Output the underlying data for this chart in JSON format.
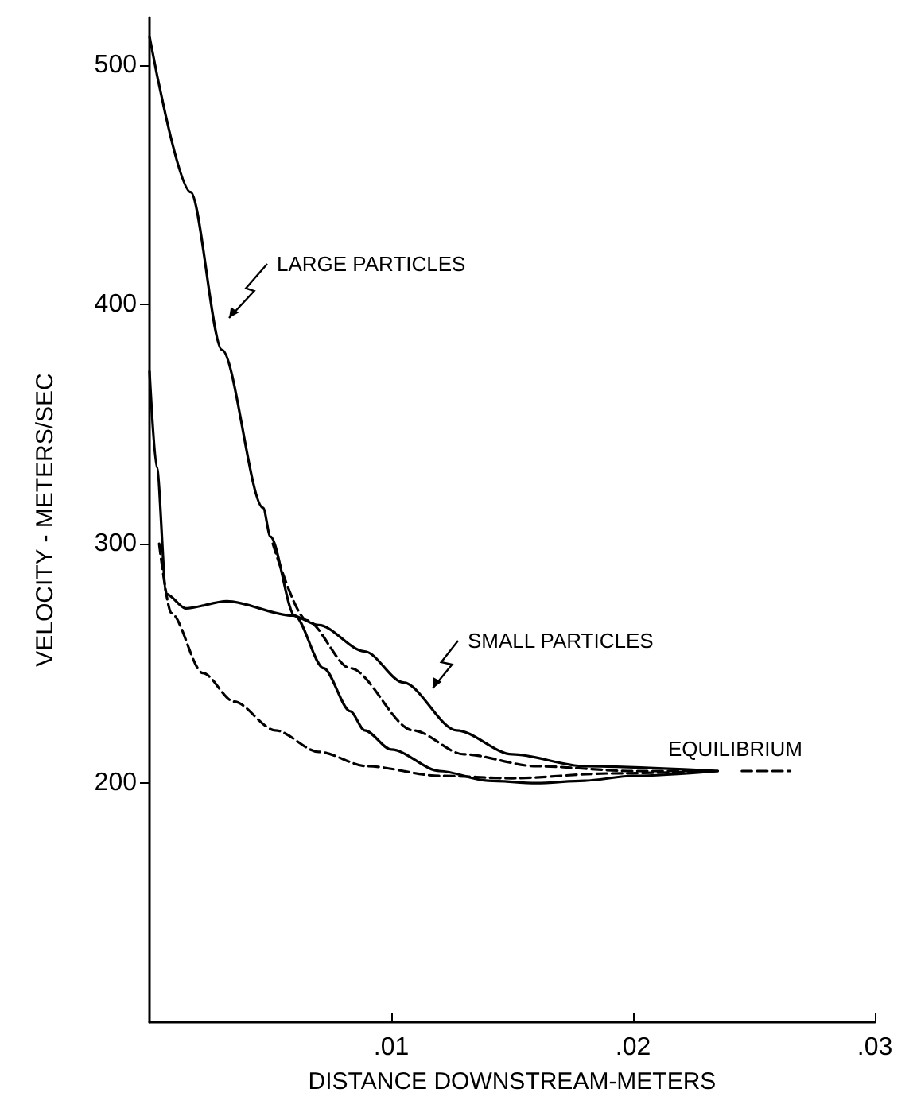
{
  "chart_data": {
    "type": "line",
    "xlabel": "DISTANCE DOWNSTREAM-METERS",
    "ylabel": "VELOCITY - METERS/SEC",
    "xlim": [
      0,
      0.03
    ],
    "ylim": [
      100,
      520
    ],
    "xticks": [
      {
        "value": 0.01,
        "label": ".01"
      },
      {
        "value": 0.02,
        "label": ".02"
      },
      {
        "value": 0.03,
        "label": ".03"
      }
    ],
    "yticks": [
      200,
      300,
      400,
      500
    ],
    "grid": false,
    "marker": "none",
    "series": [
      {
        "color": "#000000",
        "line_style": "solid",
        "x": [
          0,
          0.0017,
          0.003,
          0.0047,
          0.005,
          0.006,
          0.0072,
          0.0083,
          0.0089,
          0.01,
          0.012,
          0.014,
          0.016,
          0.018,
          0.02,
          0.0235
        ],
        "values": [
          512,
          447,
          381,
          315,
          303,
          270,
          248,
          230,
          222,
          214,
          205,
          201,
          200,
          201,
          203,
          205
        ]
      },
      {
        "color": "#000000",
        "line_style": "solid",
        "x": [
          0,
          0.0003,
          0.0007,
          0.0015,
          0.0032,
          0.0059,
          0.007,
          0.0089,
          0.0105,
          0.0127,
          0.015,
          0.018,
          0.0235
        ],
        "values": [
          372,
          332,
          279,
          273,
          276,
          270,
          266,
          255,
          242,
          222,
          212,
          207,
          205
        ]
      },
      {
        "color": "#000000",
        "line_style": "dashed",
        "x": [
          0.0051,
          0.0065,
          0.0083,
          0.0109,
          0.013,
          0.016,
          0.02,
          0.023
        ],
        "values": [
          300,
          268,
          248,
          222,
          212,
          207,
          205,
          205
        ]
      },
      {
        "color": "#000000",
        "line_style": "dashed",
        "x": [
          0.0004,
          0.0009,
          0.0022,
          0.0035,
          0.0052,
          0.007,
          0.009,
          0.012,
          0.015,
          0.019,
          0.0235
        ],
        "values": [
          300,
          271,
          246,
          234,
          222,
          213,
          207,
          203,
          202,
          204,
          205
        ]
      },
      {
        "color": "#000000",
        "line_style": "dashed",
        "x": [
          0.0245,
          0.0265
        ],
        "values": [
          205,
          205
        ]
      }
    ],
    "annotations": [
      "LARGE PARTICLES",
      "SMALL PARTICLES",
      "EQUILIBRIUM"
    ]
  }
}
